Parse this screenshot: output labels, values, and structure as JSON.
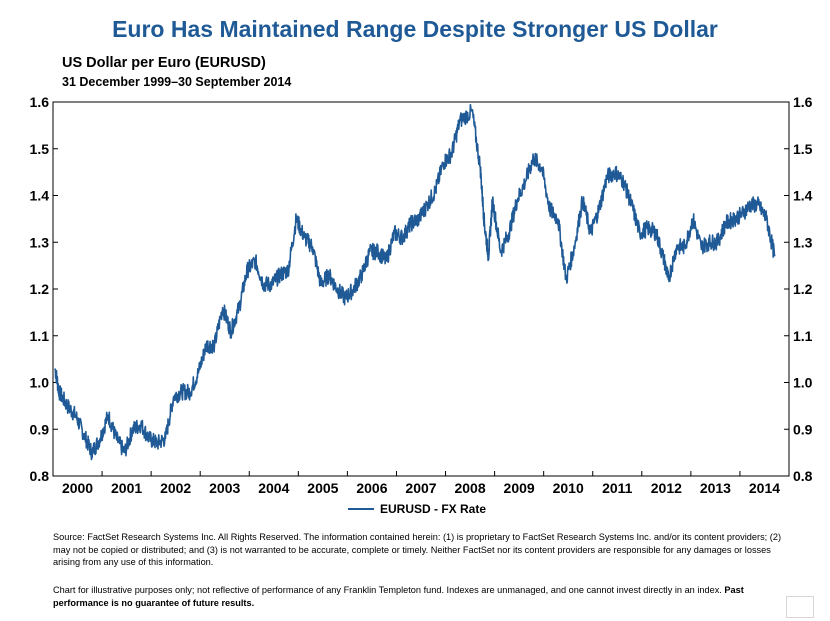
{
  "header": {
    "title": "Euro Has Maintained Range Despite Stronger US Dollar",
    "subtitle": "US Dollar per Euro (EURUSD)",
    "date_range": "31 December 1999–30 September 2014"
  },
  "chart_data": {
    "type": "line",
    "title": "Euro Has Maintained Range Despite Stronger US Dollar",
    "subtitle": "US Dollar per Euro (EURUSD)",
    "xlabel": "",
    "ylabel": "",
    "ylim": [
      0.8,
      1.6
    ],
    "y_ticks": [
      "0.8",
      "0.9",
      "1.0",
      "1.1",
      "1.2",
      "1.3",
      "1.4",
      "1.5",
      "1.6"
    ],
    "x_ticks": [
      "2000",
      "2001",
      "2002",
      "2003",
      "2004",
      "2005",
      "2006",
      "2007",
      "2008",
      "2009",
      "2010",
      "2011",
      "2012",
      "2013",
      "2014"
    ],
    "grid": false,
    "legend_position": "bottom-center",
    "series": [
      {
        "name": "EURUSD - FX Rate",
        "color": "#1f5a96",
        "x": [
          "2000-01",
          "2000-02",
          "2000-04",
          "2000-06",
          "2000-08",
          "2000-10",
          "2000-12",
          "2001-02",
          "2001-04",
          "2001-06",
          "2001-08",
          "2001-10",
          "2001-12",
          "2002-02",
          "2002-04",
          "2002-06",
          "2002-08",
          "2002-10",
          "2002-12",
          "2003-02",
          "2003-04",
          "2003-06",
          "2003-08",
          "2003-10",
          "2003-12",
          "2004-02",
          "2004-04",
          "2004-06",
          "2004-08",
          "2004-10",
          "2004-12",
          "2005-02",
          "2005-04",
          "2005-06",
          "2005-08",
          "2005-10",
          "2005-12",
          "2006-02",
          "2006-04",
          "2006-06",
          "2006-08",
          "2006-10",
          "2006-12",
          "2007-02",
          "2007-04",
          "2007-06",
          "2007-08",
          "2007-10",
          "2007-12",
          "2008-02",
          "2008-04",
          "2008-07",
          "2008-09",
          "2008-10",
          "2008-11",
          "2008-12",
          "2009-02",
          "2009-04",
          "2009-06",
          "2009-08",
          "2009-10",
          "2009-12",
          "2010-02",
          "2010-04",
          "2010-06",
          "2010-08",
          "2010-10",
          "2010-12",
          "2011-02",
          "2011-04",
          "2011-06",
          "2011-08",
          "2011-10",
          "2011-12",
          "2012-02",
          "2012-04",
          "2012-06",
          "2012-07",
          "2012-09",
          "2012-11",
          "2013-01",
          "2013-03",
          "2013-05",
          "2013-07",
          "2013-09",
          "2013-11",
          "2014-01",
          "2014-03",
          "2014-05",
          "2014-07",
          "2014-09"
        ],
        "values": [
          1.03,
          0.98,
          0.95,
          0.93,
          0.89,
          0.85,
          0.88,
          0.93,
          0.88,
          0.85,
          0.9,
          0.91,
          0.88,
          0.87,
          0.88,
          0.97,
          0.98,
          0.98,
          1.02,
          1.08,
          1.08,
          1.16,
          1.11,
          1.16,
          1.24,
          1.26,
          1.21,
          1.21,
          1.23,
          1.24,
          1.35,
          1.31,
          1.29,
          1.21,
          1.23,
          1.2,
          1.18,
          1.2,
          1.23,
          1.28,
          1.28,
          1.26,
          1.32,
          1.31,
          1.34,
          1.35,
          1.38,
          1.41,
          1.47,
          1.49,
          1.56,
          1.58,
          1.46,
          1.34,
          1.27,
          1.39,
          1.28,
          1.32,
          1.39,
          1.43,
          1.48,
          1.46,
          1.37,
          1.35,
          1.22,
          1.29,
          1.39,
          1.32,
          1.37,
          1.44,
          1.45,
          1.43,
          1.38,
          1.32,
          1.33,
          1.32,
          1.26,
          1.22,
          1.29,
          1.29,
          1.35,
          1.29,
          1.3,
          1.3,
          1.34,
          1.35,
          1.36,
          1.38,
          1.38,
          1.35,
          1.27
        ]
      }
    ]
  },
  "footnotes": {
    "source": "Source: FactSet Research Systems Inc. All Rights Reserved. The information contained herein: (1) is proprietary to FactSet Research Systems Inc. and/or its content providers; (2) may not be copied or distributed; and (3) is not warranted to be accurate, complete or timely. Neither FactSet nor its content providers are responsible for any damages or losses arising from any use of this information.",
    "disclaimer": "Chart for illustrative purposes only; not reflective of performance of any Franklin Templeton fund. Indexes are unmanaged, and one cannot invest directly in an index.",
    "disclaimer_bold": "Past performance is no guarantee of future results."
  }
}
